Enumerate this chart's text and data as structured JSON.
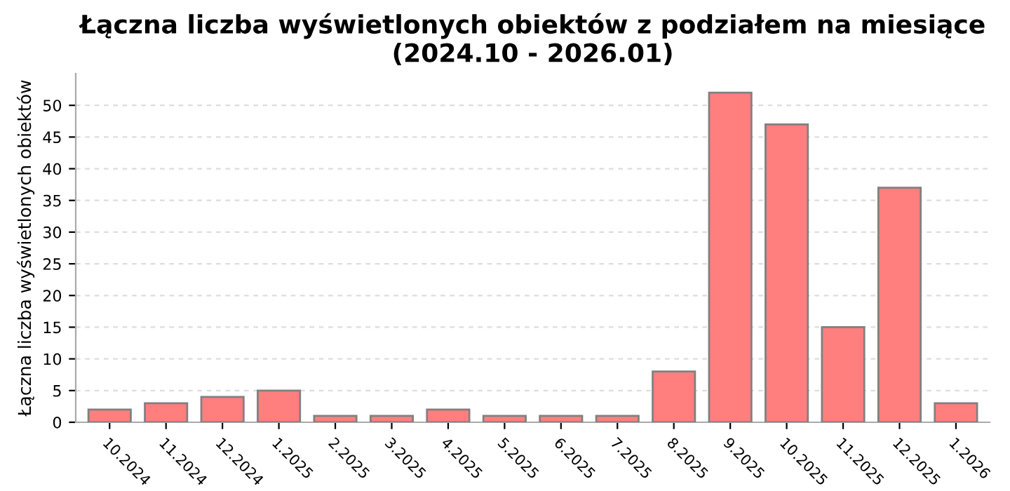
{
  "chart_data": {
    "type": "bar",
    "title": "Łączna liczba wyświetlonych obiektów z podziałem na miesiące\n(2024.10 - 2026.01)",
    "ylabel": "Łączna liczba wyświetlonych obiektów",
    "categories": [
      "10.2024",
      "11.2024",
      "12.2024",
      "1.2025",
      "2.2025",
      "3.2025",
      "4.2025",
      "5.2025",
      "6.2025",
      "7.2025",
      "8.2025",
      "9.2025",
      "10.2025",
      "11.2025",
      "12.2025",
      "1.2026"
    ],
    "values": [
      2,
      3,
      4,
      5,
      1,
      1,
      2,
      1,
      1,
      1,
      8,
      52,
      47,
      15,
      37,
      3
    ],
    "color": "#ff7f7f",
    "ylim": [
      0,
      55
    ],
    "yticks": [
      0,
      5,
      10,
      15,
      20,
      25,
      30,
      35,
      40,
      45,
      50
    ],
    "grid": "y"
  }
}
